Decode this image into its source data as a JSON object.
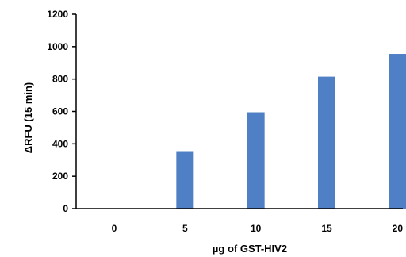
{
  "chart_data": {
    "type": "bar",
    "title": "",
    "xlabel": "µg of GST-HIV2",
    "ylabel": "ΔRFU (15 min)",
    "categories": [
      "0",
      "5",
      "10",
      "15",
      "20"
    ],
    "values": [
      0,
      355,
      595,
      815,
      955
    ],
    "ylim": [
      0,
      1200
    ],
    "yticks": [
      0,
      200,
      400,
      600,
      800,
      1000,
      1200
    ],
    "grid": false,
    "legend": "none",
    "bar_color": "#4f7fc4"
  }
}
